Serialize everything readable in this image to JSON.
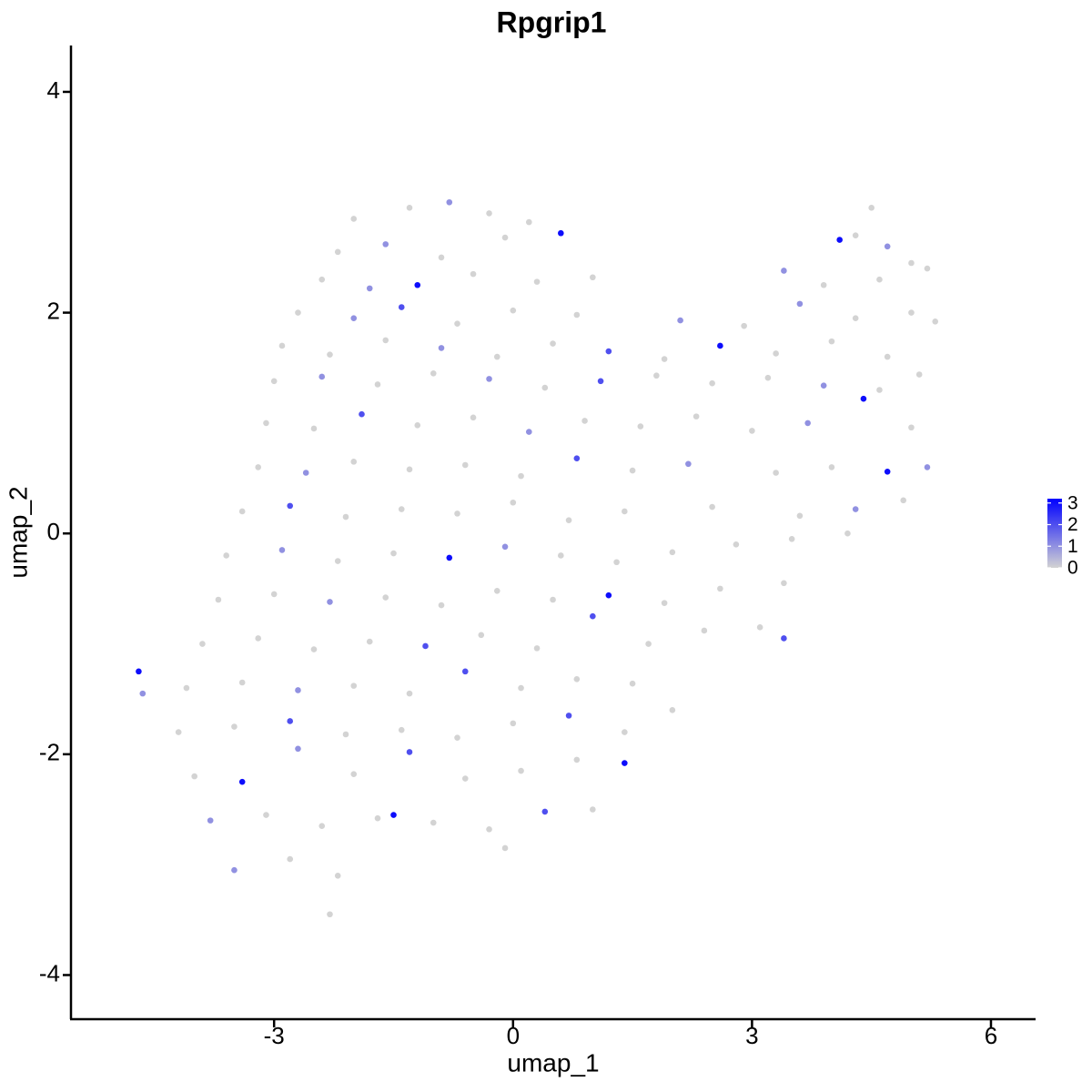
{
  "chart_data": {
    "type": "scatter",
    "title": "Rpgrip1",
    "x_label": "umap_1",
    "y_label": "umap_2",
    "xlim": [
      -5.55,
      6.56
    ],
    "ylim": [
      -4.4,
      4.42
    ],
    "xticks": [
      -3,
      0,
      3,
      6
    ],
    "yticks": [
      -4,
      -2,
      0,
      2,
      4
    ],
    "color_low": "#d3d3d3",
    "color_high": "#0000ff",
    "color_range": [
      0,
      3.2
    ],
    "color_ticks": [
      0,
      1,
      2,
      3
    ],
    "x": [
      -2.0,
      -1.3,
      -0.8,
      -0.3,
      0.2,
      4.3,
      4.5,
      -2.2,
      -1.6,
      -0.9,
      -0.1,
      0.6,
      4.1,
      4.7,
      5.0,
      -2.4,
      -1.8,
      -1.2,
      -0.5,
      0.3,
      1.0,
      3.4,
      3.9,
      4.6,
      5.2,
      -2.7,
      -2.0,
      -1.4,
      -0.7,
      0.0,
      0.8,
      2.1,
      2.9,
      3.6,
      4.3,
      5.0,
      5.3,
      -2.9,
      -2.3,
      -1.6,
      -0.9,
      -0.2,
      0.5,
      1.2,
      1.9,
      2.6,
      3.3,
      4.0,
      4.7,
      -3.0,
      -2.4,
      -1.7,
      -1.0,
      -0.3,
      0.4,
      1.1,
      1.8,
      2.5,
      3.2,
      3.9,
      4.6,
      5.1,
      -3.1,
      -2.5,
      -1.9,
      -1.2,
      -0.5,
      0.2,
      0.9,
      1.6,
      2.3,
      3.0,
      3.7,
      4.4,
      5.0,
      -3.2,
      -2.6,
      -2.0,
      -1.3,
      -0.6,
      0.1,
      0.8,
      1.5,
      2.2,
      3.3,
      4.0,
      4.7,
      5.2,
      -3.4,
      -2.8,
      -2.1,
      -1.4,
      -0.7,
      0.0,
      0.7,
      1.4,
      2.5,
      3.6,
      4.3,
      4.9,
      -3.6,
      -2.9,
      -2.2,
      -1.5,
      -0.8,
      -0.1,
      0.6,
      1.3,
      2.0,
      2.8,
      3.5,
      4.2,
      -3.7,
      -3.0,
      -2.3,
      -1.6,
      -0.9,
      -0.2,
      0.5,
      1.2,
      1.9,
      2.6,
      3.4,
      -3.9,
      -3.2,
      -2.5,
      -1.8,
      -1.1,
      -0.4,
      0.3,
      1.0,
      1.7,
      2.4,
      3.1,
      -4.1,
      -3.4,
      -2.7,
      -2.0,
      -1.3,
      -0.6,
      0.1,
      0.8,
      1.5,
      3.4,
      -4.2,
      -3.5,
      -2.8,
      -2.1,
      -1.4,
      -0.7,
      0.0,
      0.7,
      1.4,
      2.0,
      -4.0,
      -3.4,
      -2.7,
      -2.0,
      -1.3,
      -0.6,
      0.1,
      0.8,
      1.4,
      -3.8,
      -3.1,
      -2.4,
      -1.7,
      -1.0,
      -0.3,
      0.4,
      1.0,
      -3.5,
      -2.8,
      -2.2,
      -1.5,
      -0.1,
      -2.3,
      -4.7,
      -4.65
    ],
    "y": [
      2.85,
      2.95,
      3.0,
      2.9,
      2.82,
      2.7,
      2.95,
      2.55,
      2.62,
      2.5,
      2.68,
      2.72,
      2.66,
      2.6,
      2.45,
      2.3,
      2.22,
      2.25,
      2.35,
      2.28,
      2.32,
      2.38,
      2.25,
      2.3,
      2.4,
      2.0,
      1.95,
      2.05,
      1.9,
      2.02,
      1.98,
      1.93,
      1.88,
      2.08,
      1.95,
      2.0,
      1.92,
      1.7,
      1.62,
      1.75,
      1.68,
      1.6,
      1.72,
      1.65,
      1.58,
      1.7,
      1.63,
      1.74,
      1.6,
      1.38,
      1.42,
      1.35,
      1.45,
      1.4,
      1.32,
      1.38,
      1.43,
      1.36,
      1.41,
      1.34,
      1.3,
      1.44,
      1.0,
      0.95,
      1.08,
      0.98,
      1.05,
      0.92,
      1.02,
      0.97,
      1.06,
      0.93,
      1.0,
      1.22,
      0.96,
      0.6,
      0.55,
      0.65,
      0.58,
      0.62,
      0.52,
      0.68,
      0.57,
      0.63,
      0.55,
      0.6,
      0.56,
      0.6,
      0.2,
      0.25,
      0.15,
      0.22,
      0.18,
      0.28,
      0.12,
      0.2,
      0.24,
      0.16,
      0.22,
      0.3,
      -0.2,
      -0.15,
      -0.25,
      -0.18,
      -0.22,
      -0.12,
      -0.2,
      -0.26,
      -0.17,
      -0.1,
      -0.05,
      0.0,
      -0.6,
      -0.55,
      -0.62,
      -0.58,
      -0.65,
      -0.52,
      -0.6,
      -0.56,
      -0.63,
      -0.5,
      -0.45,
      -1.0,
      -0.95,
      -1.05,
      -0.98,
      -1.02,
      -0.92,
      -1.04,
      -0.75,
      -1.0,
      -0.88,
      -0.85,
      -1.4,
      -1.35,
      -1.42,
      -1.38,
      -1.45,
      -1.25,
      -1.4,
      -1.32,
      -1.36,
      -0.95,
      -1.8,
      -1.75,
      -1.7,
      -1.82,
      -1.78,
      -1.85,
      -1.72,
      -1.65,
      -1.8,
      -1.6,
      -2.2,
      -2.25,
      -1.95,
      -2.18,
      -1.98,
      -2.22,
      -2.15,
      -2.05,
      -2.08,
      -2.6,
      -2.55,
      -2.65,
      -2.58,
      -2.62,
      -2.68,
      -2.52,
      -2.5,
      -3.05,
      -2.95,
      -3.1,
      -2.55,
      -2.85,
      -3.45,
      -1.25,
      -1.45
    ],
    "expression": [
      0,
      0,
      1,
      0,
      0,
      0,
      0,
      0,
      1,
      0,
      0,
      3,
      3,
      1,
      0,
      0,
      1,
      3,
      0,
      0,
      0,
      1,
      0,
      0,
      0,
      0,
      1,
      2,
      0,
      0,
      0,
      1,
      0,
      1,
      0,
      0,
      0,
      0,
      0,
      0,
      1,
      0,
      0,
      2,
      0,
      3,
      0,
      0,
      0,
      0,
      1,
      0,
      0,
      1,
      0,
      2,
      0,
      0,
      0,
      1,
      0,
      0,
      0,
      0,
      2,
      0,
      0,
      1,
      0,
      0,
      0,
      0,
      1,
      3,
      0,
      0,
      1,
      0,
      0,
      0,
      0,
      2,
      0,
      1,
      0,
      0,
      3,
      1,
      0,
      2,
      0,
      0,
      0,
      0,
      0,
      0,
      0,
      0,
      1,
      0,
      0,
      1,
      0,
      0,
      3,
      1,
      0,
      0,
      0,
      0,
      0,
      0,
      0,
      0,
      1,
      0,
      0,
      0,
      0,
      3,
      0,
      0,
      0,
      0,
      0,
      0,
      0,
      2,
      0,
      0,
      2,
      0,
      0,
      0,
      0,
      0,
      1,
      0,
      0,
      2,
      0,
      0,
      0,
      2,
      0,
      0,
      2,
      0,
      0,
      0,
      0,
      2,
      0,
      0,
      0,
      3,
      1,
      0,
      2,
      0,
      0,
      0,
      3,
      1,
      0,
      0,
      0,
      0,
      0,
      2,
      0,
      1,
      0,
      0,
      3,
      0,
      0,
      3,
      1
    ]
  }
}
